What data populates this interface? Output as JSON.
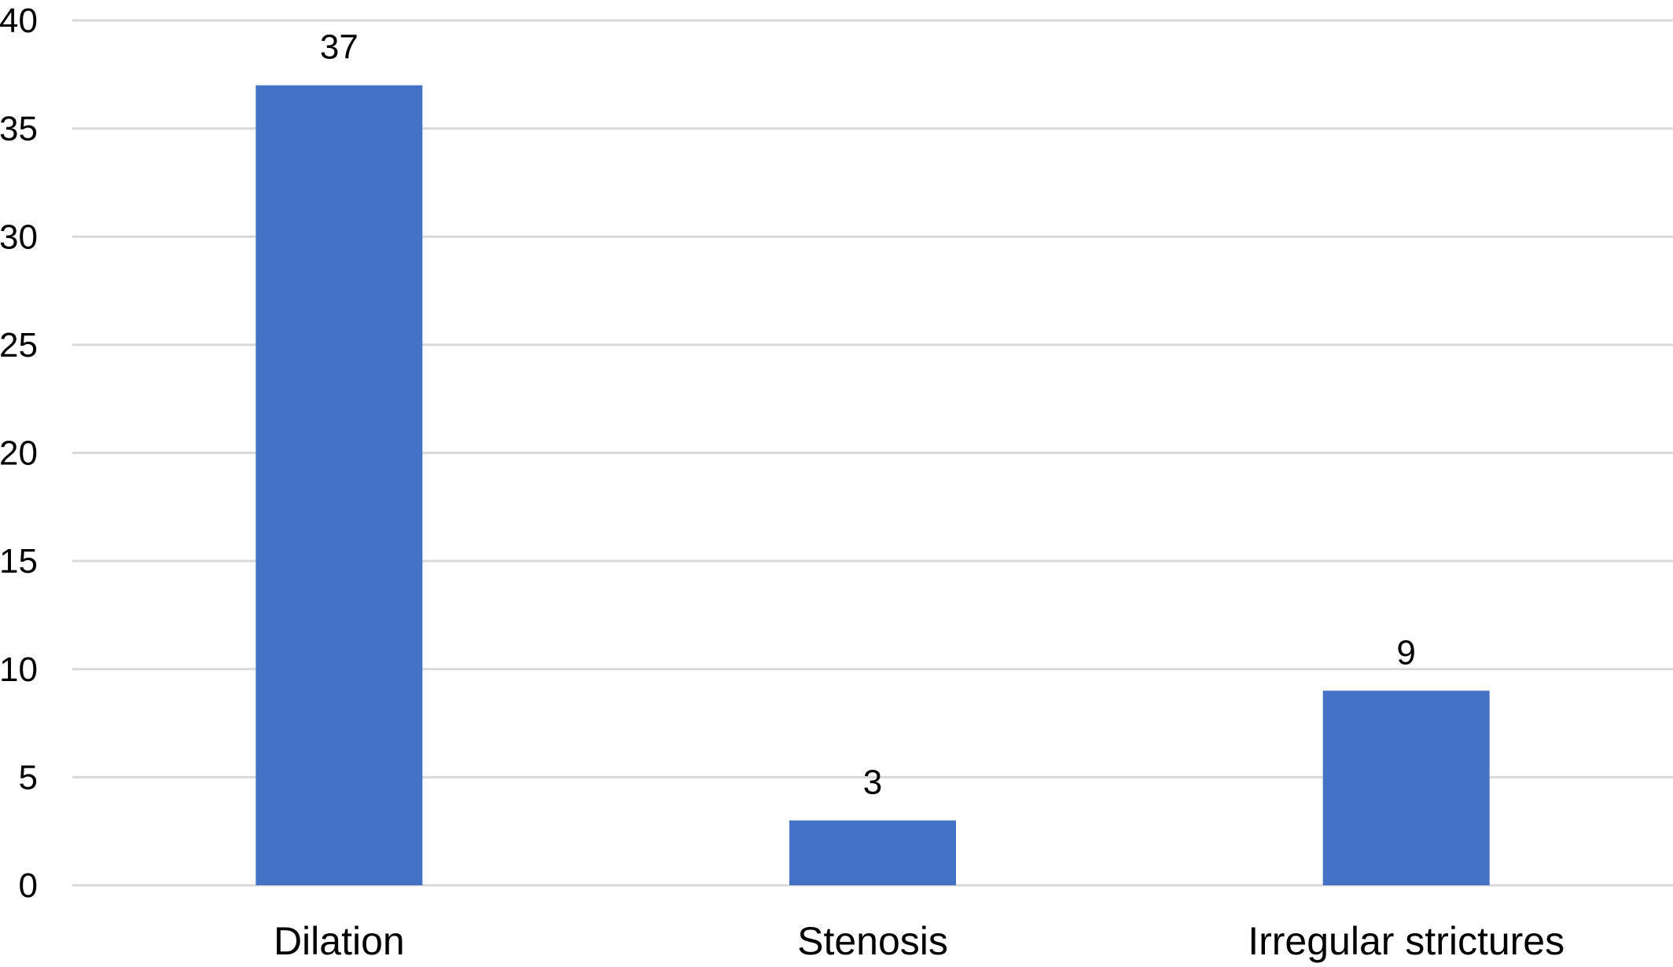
{
  "chart_data": {
    "type": "bar",
    "categories": [
      "Dilation",
      "Stenosis",
      "Irregular strictures"
    ],
    "values": [
      37,
      3,
      9
    ],
    "data_labels": [
      "37",
      "3",
      "9"
    ],
    "ylim": [
      0,
      40
    ],
    "yticks": [
      0,
      5,
      10,
      15,
      20,
      25,
      30,
      35,
      40
    ],
    "ytick_labels": [
      "0",
      "5",
      "10",
      "15",
      "20",
      "25",
      "30",
      "35",
      "40"
    ],
    "title": "",
    "xlabel": "",
    "ylabel": "",
    "grid": true,
    "legend": "none",
    "bar_color": "#4472c4",
    "grid_color": "#d9d9d9"
  }
}
